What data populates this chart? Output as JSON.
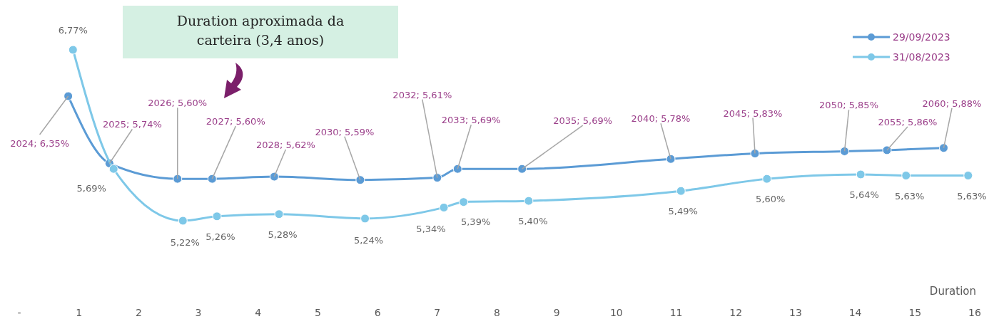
{
  "chart_data": {
    "type": "line",
    "xlabel": "Duration",
    "xlim": [
      0,
      16
    ],
    "xticks": [
      {
        "value": 0,
        "label": "-"
      },
      1,
      2,
      3,
      4,
      5,
      6,
      7,
      8,
      9,
      10,
      11,
      12,
      13,
      14,
      15,
      16
    ],
    "annotations": [
      "Duration aproximada da carteira (3,4 anos)"
    ],
    "legend": "top right",
    "marker": "circle",
    "series": [
      {
        "name": "29/09/2023",
        "color": "#5b9bd5",
        "x": [
          0.82,
          1.51,
          2.65,
          3.23,
          4.27,
          5.71,
          7.0,
          7.34,
          8.42,
          10.91,
          12.32,
          13.82,
          14.53,
          15.48
        ],
        "values": [
          6.35,
          5.74,
          5.6,
          5.6,
          5.62,
          5.59,
          5.61,
          5.69,
          5.69,
          5.78,
          5.83,
          5.85,
          5.86,
          5.88
        ],
        "value_labels": [
          "2024;  6,35%",
          "2025;  5,74%",
          "2026;  5,60%",
          "2027;  5,60%",
          "2028;  5,62%",
          "2030;  5,59%",
          "2032;  5,61%",
          "2033;  5,69%",
          "2035;  5,69%",
          "2040;  5,78%",
          "2045;  5,83%",
          "2050;  5,85%",
          "2055;  5,86%",
          "2060;  5,88%"
        ]
      },
      {
        "name": "31/08/2023",
        "color": "#7ec8e8",
        "x": [
          0.9,
          1.58,
          2.74,
          3.31,
          4.35,
          5.79,
          7.11,
          7.44,
          8.53,
          11.08,
          12.52,
          14.09,
          14.85,
          15.89
        ],
        "values": [
          6.77,
          5.69,
          5.22,
          5.26,
          5.28,
          5.24,
          5.34,
          5.39,
          5.4,
          5.49,
          5.6,
          5.64,
          5.63,
          5.63
        ],
        "value_labels": [
          "6,77%",
          "5,69%",
          "5,22%",
          "5,26%",
          "5,28%",
          "5,24%",
          "5,34%",
          "5,39%",
          "5,40%",
          "5,49%",
          "5,60%",
          "5,64%",
          "5,63%",
          "5,63%"
        ]
      }
    ]
  }
}
